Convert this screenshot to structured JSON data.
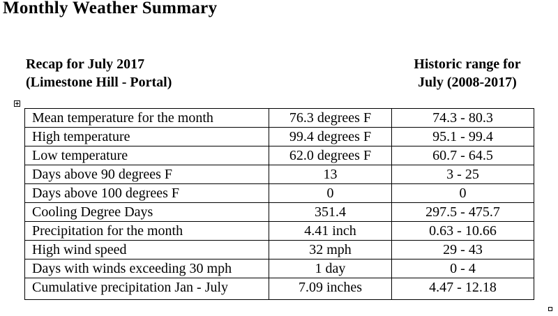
{
  "page": {
    "title": "Monthly Weather Summary"
  },
  "recap_heading": {
    "line1": "Recap for July 2017",
    "line2": "(Limestone Hill - Portal)"
  },
  "historic_heading": {
    "line1": "Historic range for",
    "line2": "July (2008-2017)"
  },
  "table": {
    "rows": [
      {
        "label": "Mean temperature for the month",
        "value": "76.3 degrees F",
        "range": "74.3 - 80.3"
      },
      {
        "label": "High temperature",
        "value": "99.4 degrees F",
        "range": "95.1 - 99.4"
      },
      {
        "label": "Low temperature",
        "value": "62.0 degrees F",
        "range": "60.7 - 64.5"
      },
      {
        "label": "Days above 90 degrees F",
        "value": "13",
        "range": "3 - 25"
      },
      {
        "label": "Days above 100 degrees F",
        "value": "0",
        "range": "0"
      },
      {
        "label": "Cooling Degree Days",
        "value": "351.4",
        "range": "297.5 - 475.7"
      },
      {
        "label": "Precipitation for the month",
        "value": "4.41 inch",
        "range": "0.63 - 10.66"
      },
      {
        "label": "High wind speed",
        "value": "32 mph",
        "range": "29 - 43"
      },
      {
        "label": "Days with winds exceeding 30 mph",
        "value": "1 day",
        "range": "0 - 4"
      },
      {
        "label": "Cumulative precipitation Jan - July",
        "value": "7.09 inches",
        "range": "4.47 - 12.18"
      }
    ]
  },
  "icons": {
    "table_move_handle": "move-cross-icon",
    "table_resize_handle": "resize-square-icon"
  }
}
